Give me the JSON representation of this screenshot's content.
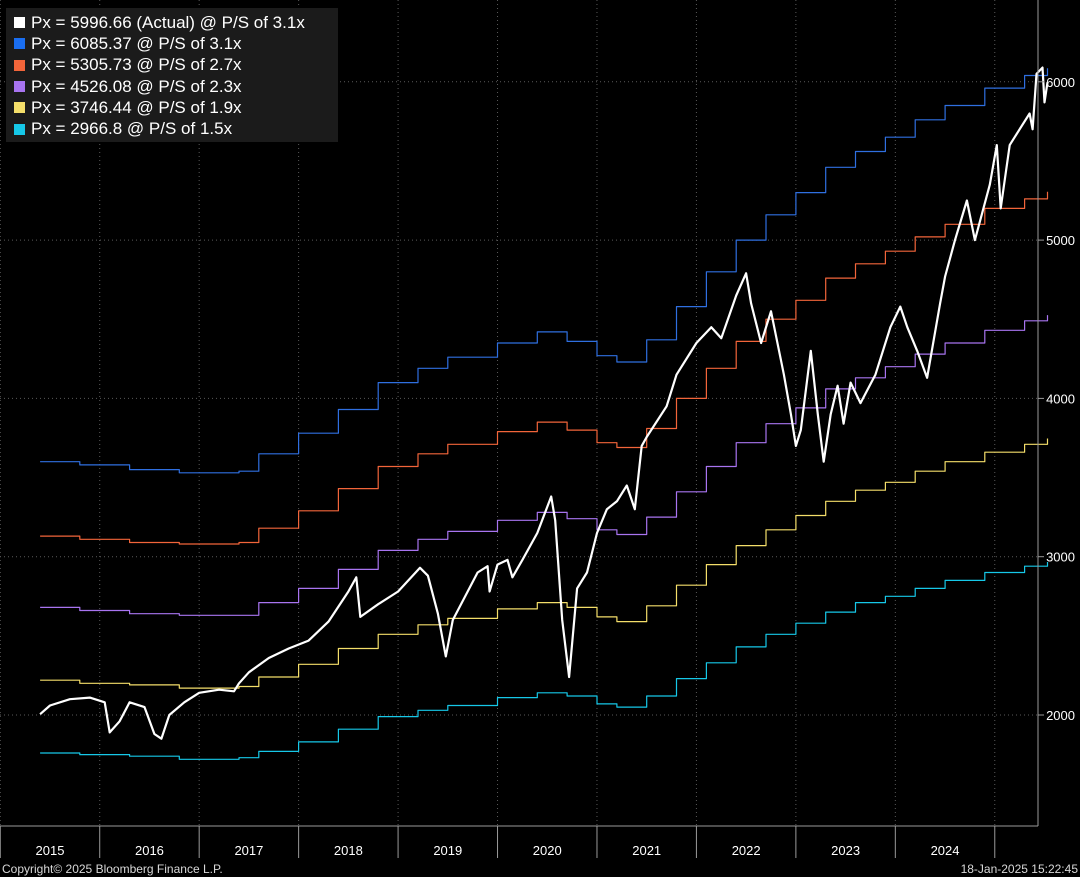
{
  "footer": {
    "copyright": "Copyright© 2025 Bloomberg Finance L.P.",
    "timestamp": "18-Jan-2025 15:22:45"
  },
  "colors": {
    "background": "#000000",
    "grid": "#5a5a5a",
    "actual": "#ffffff",
    "pe31": "#2f6fe0",
    "pe27": "#f2653a",
    "pe23": "#a874f0",
    "pe19": "#f4de6a",
    "pe15": "#16c8e8"
  },
  "legend": [
    {
      "label": "Px = 5996.66 (Actual) @ P/S of 3.1x",
      "color": "#ffffff"
    },
    {
      "label": "Px = 6085.37 @ P/S of 3.1x",
      "color": "#1a6ef0"
    },
    {
      "label": "Px = 5305.73 @ P/S of 2.7x",
      "color": "#f2653a"
    },
    {
      "label": "Px = 4526.08 @ P/S of 2.3x",
      "color": "#a874f0"
    },
    {
      "label": "Px = 3746.44 @ P/S of 1.9x",
      "color": "#f4de6a"
    },
    {
      "label": "Px = 2966.8 @ P/S of 1.5x",
      "color": "#16c8e8"
    }
  ],
  "chart_data": {
    "type": "line",
    "ylim": [
      1400,
      6500
    ],
    "xlim": [
      2014.9,
      2025.2
    ],
    "y_ticks": [
      "2000",
      "3000",
      "4000",
      "5000",
      "6000"
    ],
    "x_ticks": [
      "2015",
      "2016",
      "2017",
      "2018",
      "2019",
      "2020",
      "2021",
      "2022",
      "2023",
      "2024"
    ],
    "grid": true,
    "legend_position": "top-left",
    "series": [
      {
        "name": "Px = 5996.66 (Actual) @ P/S of 3.1x",
        "color": "#ffffff",
        "points": [
          [
            2014.9,
            2005
          ],
          [
            2015.0,
            2060
          ],
          [
            2015.2,
            2100
          ],
          [
            2015.4,
            2110
          ],
          [
            2015.55,
            2080
          ],
          [
            2015.6,
            1890
          ],
          [
            2015.7,
            1960
          ],
          [
            2015.8,
            2080
          ],
          [
            2015.95,
            2050
          ],
          [
            2016.05,
            1880
          ],
          [
            2016.12,
            1850
          ],
          [
            2016.2,
            2000
          ],
          [
            2016.35,
            2080
          ],
          [
            2016.5,
            2140
          ],
          [
            2016.7,
            2160
          ],
          [
            2016.85,
            2150
          ],
          [
            2016.9,
            2200
          ],
          [
            2017.0,
            2270
          ],
          [
            2017.2,
            2360
          ],
          [
            2017.4,
            2420
          ],
          [
            2017.6,
            2470
          ],
          [
            2017.8,
            2590
          ],
          [
            2018.0,
            2780
          ],
          [
            2018.08,
            2870
          ],
          [
            2018.12,
            2620
          ],
          [
            2018.3,
            2700
          ],
          [
            2018.5,
            2780
          ],
          [
            2018.72,
            2930
          ],
          [
            2018.8,
            2880
          ],
          [
            2018.9,
            2640
          ],
          [
            2018.98,
            2370
          ],
          [
            2019.05,
            2600
          ],
          [
            2019.3,
            2900
          ],
          [
            2019.4,
            2940
          ],
          [
            2019.42,
            2780
          ],
          [
            2019.5,
            2950
          ],
          [
            2019.6,
            2980
          ],
          [
            2019.65,
            2870
          ],
          [
            2019.75,
            2980
          ],
          [
            2019.9,
            3150
          ],
          [
            2020.04,
            3380
          ],
          [
            2020.08,
            3230
          ],
          [
            2020.15,
            2600
          ],
          [
            2020.22,
            2240
          ],
          [
            2020.3,
            2800
          ],
          [
            2020.4,
            2900
          ],
          [
            2020.5,
            3150
          ],
          [
            2020.6,
            3300
          ],
          [
            2020.7,
            3350
          ],
          [
            2020.8,
            3450
          ],
          [
            2020.88,
            3300
          ],
          [
            2020.95,
            3700
          ],
          [
            2021.0,
            3756
          ],
          [
            2021.2,
            3950
          ],
          [
            2021.3,
            4150
          ],
          [
            2021.5,
            4350
          ],
          [
            2021.65,
            4450
          ],
          [
            2021.75,
            4380
          ],
          [
            2021.9,
            4650
          ],
          [
            2022.0,
            4790
          ],
          [
            2022.05,
            4600
          ],
          [
            2022.15,
            4350
          ],
          [
            2022.25,
            4550
          ],
          [
            2022.38,
            4150
          ],
          [
            2022.45,
            3900
          ],
          [
            2022.5,
            3700
          ],
          [
            2022.55,
            3800
          ],
          [
            2022.65,
            4300
          ],
          [
            2022.72,
            3900
          ],
          [
            2022.78,
            3600
          ],
          [
            2022.85,
            3900
          ],
          [
            2022.92,
            4080
          ],
          [
            2022.98,
            3840
          ],
          [
            2023.05,
            4100
          ],
          [
            2023.15,
            3970
          ],
          [
            2023.3,
            4150
          ],
          [
            2023.45,
            4450
          ],
          [
            2023.55,
            4580
          ],
          [
            2023.62,
            4450
          ],
          [
            2023.72,
            4300
          ],
          [
            2023.82,
            4130
          ],
          [
            2023.95,
            4600
          ],
          [
            2024.0,
            4770
          ],
          [
            2024.1,
            5000
          ],
          [
            2024.22,
            5250
          ],
          [
            2024.3,
            5000
          ],
          [
            2024.45,
            5350
          ],
          [
            2024.52,
            5600
          ],
          [
            2024.56,
            5200
          ],
          [
            2024.65,
            5600
          ],
          [
            2024.75,
            5700
          ],
          [
            2024.85,
            5800
          ],
          [
            2024.88,
            5700
          ],
          [
            2024.92,
            6050
          ],
          [
            2024.98,
            6090
          ],
          [
            2025.0,
            5870
          ],
          [
            2025.03,
            5996.66
          ]
        ]
      },
      {
        "name": "Px = 6085.37 @ P/S of 3.1x",
        "color": "#2f6fe0",
        "points": [
          [
            2014.9,
            3600
          ],
          [
            2015.3,
            3580
          ],
          [
            2015.8,
            3550
          ],
          [
            2016.3,
            3530
          ],
          [
            2016.9,
            3540
          ],
          [
            2017.1,
            3650
          ],
          [
            2017.5,
            3780
          ],
          [
            2017.9,
            3930
          ],
          [
            2018.3,
            4100
          ],
          [
            2018.7,
            4190
          ],
          [
            2019.0,
            4260
          ],
          [
            2019.5,
            4350
          ],
          [
            2019.9,
            4420
          ],
          [
            2020.2,
            4360
          ],
          [
            2020.5,
            4270
          ],
          [
            2020.7,
            4230
          ],
          [
            2021.0,
            4370
          ],
          [
            2021.3,
            4580
          ],
          [
            2021.6,
            4800
          ],
          [
            2021.9,
            5000
          ],
          [
            2022.2,
            5160
          ],
          [
            2022.5,
            5300
          ],
          [
            2022.8,
            5460
          ],
          [
            2023.1,
            5560
          ],
          [
            2023.4,
            5650
          ],
          [
            2023.7,
            5760
          ],
          [
            2024.0,
            5850
          ],
          [
            2024.4,
            5960
          ],
          [
            2024.8,
            6040
          ],
          [
            2025.03,
            6085.37
          ]
        ]
      },
      {
        "name": "Px = 5305.73 @ P/S of 2.7x",
        "color": "#f2653a",
        "points": [
          [
            2014.9,
            3130
          ],
          [
            2015.3,
            3110
          ],
          [
            2015.8,
            3090
          ],
          [
            2016.3,
            3080
          ],
          [
            2016.9,
            3090
          ],
          [
            2017.1,
            3180
          ],
          [
            2017.5,
            3290
          ],
          [
            2017.9,
            3430
          ],
          [
            2018.3,
            3570
          ],
          [
            2018.7,
            3650
          ],
          [
            2019.0,
            3710
          ],
          [
            2019.5,
            3790
          ],
          [
            2019.9,
            3850
          ],
          [
            2020.2,
            3800
          ],
          [
            2020.5,
            3720
          ],
          [
            2020.7,
            3690
          ],
          [
            2021.0,
            3810
          ],
          [
            2021.3,
            4000
          ],
          [
            2021.6,
            4190
          ],
          [
            2021.9,
            4360
          ],
          [
            2022.2,
            4500
          ],
          [
            2022.5,
            4620
          ],
          [
            2022.8,
            4760
          ],
          [
            2023.1,
            4850
          ],
          [
            2023.4,
            4930
          ],
          [
            2023.7,
            5020
          ],
          [
            2024.0,
            5100
          ],
          [
            2024.4,
            5200
          ],
          [
            2024.8,
            5260
          ],
          [
            2025.03,
            5305.73
          ]
        ]
      },
      {
        "name": "Px = 4526.08 @ P/S of 2.3x",
        "color": "#a874f0",
        "points": [
          [
            2014.9,
            2680
          ],
          [
            2015.3,
            2660
          ],
          [
            2015.8,
            2640
          ],
          [
            2016.3,
            2630
          ],
          [
            2016.9,
            2630
          ],
          [
            2017.1,
            2710
          ],
          [
            2017.5,
            2800
          ],
          [
            2017.9,
            2920
          ],
          [
            2018.3,
            3040
          ],
          [
            2018.7,
            3110
          ],
          [
            2019.0,
            3160
          ],
          [
            2019.5,
            3230
          ],
          [
            2019.9,
            3280
          ],
          [
            2020.2,
            3240
          ],
          [
            2020.5,
            3170
          ],
          [
            2020.7,
            3140
          ],
          [
            2021.0,
            3250
          ],
          [
            2021.3,
            3410
          ],
          [
            2021.6,
            3570
          ],
          [
            2021.9,
            3720
          ],
          [
            2022.2,
            3840
          ],
          [
            2022.5,
            3940
          ],
          [
            2022.8,
            4060
          ],
          [
            2023.1,
            4130
          ],
          [
            2023.4,
            4200
          ],
          [
            2023.7,
            4280
          ],
          [
            2024.0,
            4350
          ],
          [
            2024.4,
            4430
          ],
          [
            2024.8,
            4490
          ],
          [
            2025.03,
            4526.08
          ]
        ]
      },
      {
        "name": "Px = 3746.44 @ P/S of 1.9x",
        "color": "#f4de6a",
        "points": [
          [
            2014.9,
            2220
          ],
          [
            2015.3,
            2200
          ],
          [
            2015.8,
            2190
          ],
          [
            2016.3,
            2170
          ],
          [
            2016.9,
            2180
          ],
          [
            2017.1,
            2240
          ],
          [
            2017.5,
            2320
          ],
          [
            2017.9,
            2420
          ],
          [
            2018.3,
            2510
          ],
          [
            2018.7,
            2570
          ],
          [
            2019.0,
            2610
          ],
          [
            2019.5,
            2670
          ],
          [
            2019.9,
            2710
          ],
          [
            2020.2,
            2680
          ],
          [
            2020.5,
            2620
          ],
          [
            2020.7,
            2590
          ],
          [
            2021.0,
            2690
          ],
          [
            2021.3,
            2820
          ],
          [
            2021.6,
            2950
          ],
          [
            2021.9,
            3070
          ],
          [
            2022.2,
            3170
          ],
          [
            2022.5,
            3260
          ],
          [
            2022.8,
            3350
          ],
          [
            2023.1,
            3420
          ],
          [
            2023.4,
            3470
          ],
          [
            2023.7,
            3540
          ],
          [
            2024.0,
            3600
          ],
          [
            2024.4,
            3660
          ],
          [
            2024.8,
            3710
          ],
          [
            2025.03,
            3746.44
          ]
        ]
      },
      {
        "name": "Px = 2966.8 @ P/S of 1.5x",
        "color": "#16c8e8",
        "points": [
          [
            2014.9,
            1760
          ],
          [
            2015.3,
            1750
          ],
          [
            2015.8,
            1740
          ],
          [
            2016.3,
            1720
          ],
          [
            2016.9,
            1730
          ],
          [
            2017.1,
            1770
          ],
          [
            2017.5,
            1830
          ],
          [
            2017.9,
            1910
          ],
          [
            2018.3,
            1990
          ],
          [
            2018.7,
            2030
          ],
          [
            2019.0,
            2060
          ],
          [
            2019.5,
            2110
          ],
          [
            2019.9,
            2140
          ],
          [
            2020.2,
            2120
          ],
          [
            2020.5,
            2070
          ],
          [
            2020.7,
            2050
          ],
          [
            2021.0,
            2120
          ],
          [
            2021.3,
            2230
          ],
          [
            2021.6,
            2330
          ],
          [
            2021.9,
            2430
          ],
          [
            2022.2,
            2510
          ],
          [
            2022.5,
            2580
          ],
          [
            2022.8,
            2650
          ],
          [
            2023.1,
            2710
          ],
          [
            2023.4,
            2750
          ],
          [
            2023.7,
            2800
          ],
          [
            2024.0,
            2850
          ],
          [
            2024.4,
            2900
          ],
          [
            2024.8,
            2940
          ],
          [
            2025.03,
            2966.8
          ]
        ]
      }
    ]
  }
}
